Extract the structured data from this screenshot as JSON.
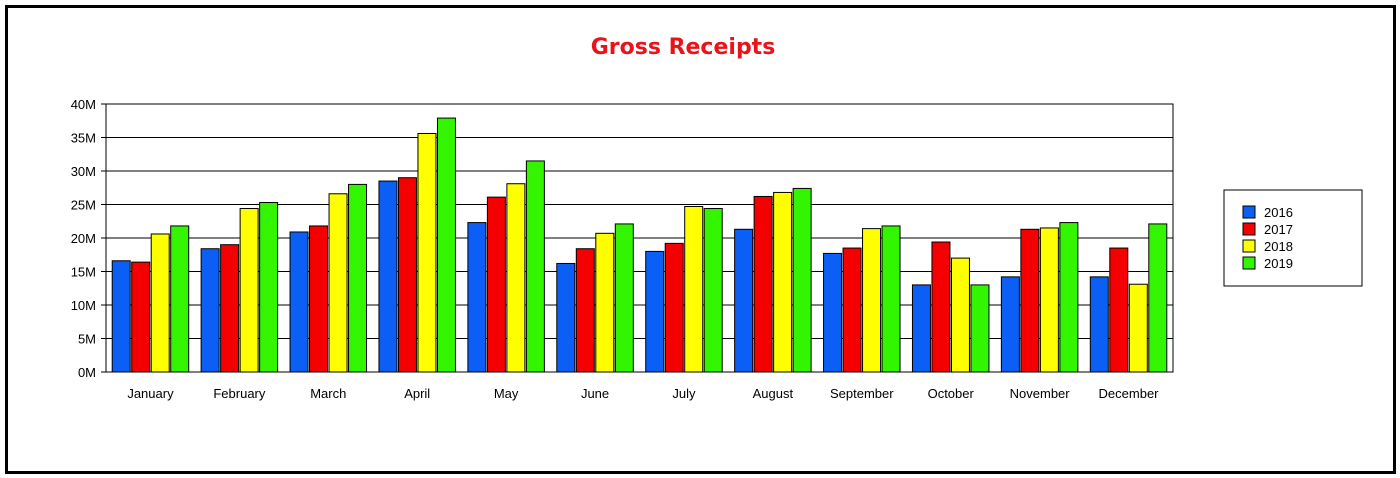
{
  "chart_data": {
    "type": "bar",
    "title": "Gross Receipts",
    "xlabel": "",
    "ylabel": "",
    "ylim": [
      0,
      40000000
    ],
    "yticks": [
      "0M",
      "5M",
      "10M",
      "15M",
      "20M",
      "25M",
      "30M",
      "35M",
      "40M"
    ],
    "grid": true,
    "legend_position": "right",
    "categories": [
      "January",
      "February",
      "March",
      "April",
      "May",
      "June",
      "July",
      "August",
      "September",
      "October",
      "November",
      "December"
    ],
    "series": [
      {
        "name": "2016",
        "color": "#0b5ff5",
        "values": [
          16.6,
          18.4,
          20.9,
          28.5,
          22.3,
          16.2,
          18.0,
          21.3,
          17.7,
          13.0,
          14.2,
          14.2
        ]
      },
      {
        "name": "2017",
        "color": "#f50000",
        "values": [
          16.4,
          19.0,
          21.8,
          29.0,
          26.1,
          18.4,
          19.2,
          26.2,
          18.5,
          19.4,
          21.3,
          18.5
        ]
      },
      {
        "name": "2018",
        "color": "#ffff00",
        "values": [
          20.6,
          24.4,
          26.6,
          35.6,
          28.1,
          20.7,
          24.7,
          26.8,
          21.4,
          17.0,
          21.5,
          13.1
        ]
      },
      {
        "name": "2019",
        "color": "#33f500",
        "values": [
          21.8,
          25.3,
          28.0,
          37.9,
          31.5,
          22.1,
          24.4,
          27.4,
          21.8,
          13.0,
          22.3,
          22.1
        ]
      }
    ],
    "value_unit": "M"
  }
}
